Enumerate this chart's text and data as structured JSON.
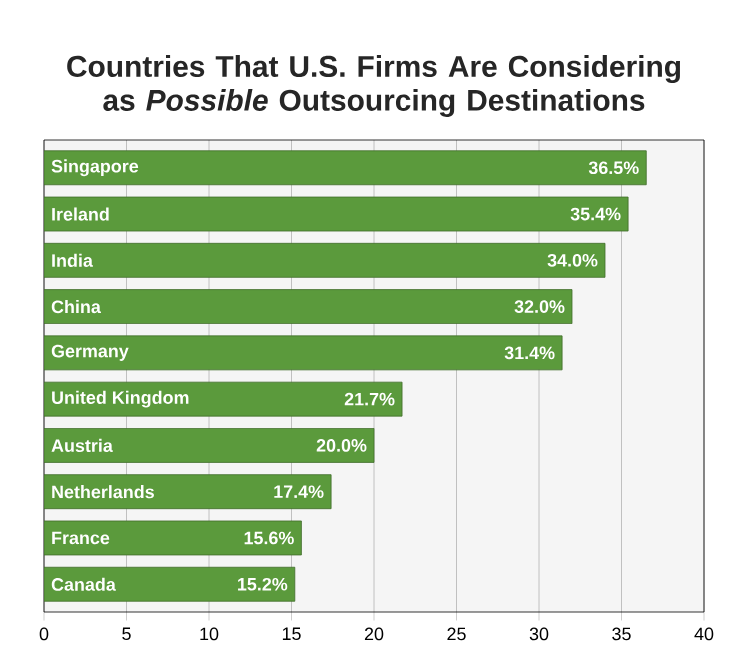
{
  "chart_data": {
    "type": "bar",
    "orientation": "horizontal",
    "title": "Countries That U.S. Firms Are Considering as *Possible* Outsourcing Destinations",
    "categories": [
      "Singapore",
      "Ireland",
      "India",
      "China",
      "Germany",
      "United Kingdom",
      "Austria",
      "Netherlands",
      "France",
      "Canada"
    ],
    "values": [
      36.5,
      35.4,
      34.0,
      32.0,
      31.4,
      21.7,
      20.0,
      17.4,
      15.6,
      15.2
    ],
    "value_labels": [
      "36.5%",
      "35.4%",
      "34.0%",
      "32.0%",
      "31.4%",
      "21.7%",
      "20.0%",
      "17.4%",
      "15.6%",
      "15.2%"
    ],
    "color": "#5b9a3c",
    "xlim": [
      0,
      40
    ],
    "xticks": [
      0,
      5,
      10,
      15,
      20,
      25,
      30,
      35,
      40
    ],
    "grid": "x"
  }
}
